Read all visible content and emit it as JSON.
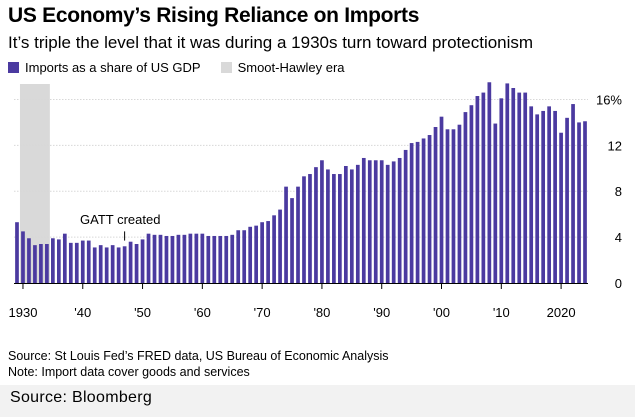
{
  "title": "US Economy’s Rising Reliance on Imports",
  "subtitle": "It’s triple the level that it was during a 1930s turn toward protectionism",
  "legend": [
    {
      "label": "Imports as a share of US GDP",
      "color": "#4b3aa0"
    },
    {
      "label": "Smoot-Hawley era",
      "color": "#d9d9d9"
    }
  ],
  "chart_data": {
    "type": "bar",
    "title": "US Economy’s Rising Reliance on Imports",
    "subtitle": "It’s triple the level that it was during a 1930s turn toward protectionism",
    "xlabel": "",
    "ylabel": "",
    "ylim": [
      0,
      17
    ],
    "xlim": [
      1929,
      2024
    ],
    "y_ticks": [
      0,
      4,
      8,
      12,
      16
    ],
    "y_tick_labels": [
      "0",
      "4",
      "8",
      "12",
      "16%"
    ],
    "x_ticks": [
      1930,
      1940,
      1950,
      1960,
      1970,
      1980,
      1990,
      2000,
      2010,
      2020
    ],
    "x_tick_labels": [
      "1930",
      "'40",
      "'50",
      "'60",
      "'70",
      "'80",
      "'90",
      "'00",
      "'10",
      "2020"
    ],
    "grid": "horizontal",
    "legend_position": "top-left",
    "shaded_region": {
      "label": "Smoot-Hawley era",
      "start": 1930,
      "end": 1934,
      "color": "#d9d9d9"
    },
    "annotations": [
      {
        "text": "GATT created",
        "x": 1947
      }
    ],
    "series": [
      {
        "name": "Imports as a share of US GDP",
        "color": "#4b3aa0",
        "x": [
          1929,
          1930,
          1931,
          1932,
          1933,
          1934,
          1935,
          1936,
          1937,
          1938,
          1939,
          1940,
          1941,
          1942,
          1943,
          1944,
          1945,
          1946,
          1947,
          1948,
          1949,
          1950,
          1951,
          1952,
          1953,
          1954,
          1955,
          1956,
          1957,
          1958,
          1959,
          1960,
          1961,
          1962,
          1963,
          1964,
          1965,
          1966,
          1967,
          1968,
          1969,
          1970,
          1971,
          1972,
          1973,
          1974,
          1975,
          1976,
          1977,
          1978,
          1979,
          1980,
          1981,
          1982,
          1983,
          1984,
          1985,
          1986,
          1987,
          1988,
          1989,
          1990,
          1991,
          1992,
          1993,
          1994,
          1995,
          1996,
          1997,
          1998,
          1999,
          2000,
          2001,
          2002,
          2003,
          2004,
          2005,
          2006,
          2007,
          2008,
          2009,
          2010,
          2011,
          2012,
          2013,
          2014,
          2015,
          2016,
          2017,
          2018,
          2019,
          2020,
          2021,
          2022,
          2023,
          2024
        ],
        "values": [
          5.3,
          4.5,
          3.9,
          3.3,
          3.4,
          3.4,
          3.9,
          3.8,
          4.3,
          3.5,
          3.5,
          3.7,
          3.7,
          3.1,
          3.3,
          3.1,
          3.3,
          3.1,
          3.2,
          3.6,
          3.4,
          3.8,
          4.3,
          4.2,
          4.2,
          4.1,
          4.1,
          4.2,
          4.2,
          4.3,
          4.3,
          4.3,
          4.1,
          4.1,
          4.1,
          4.1,
          4.2,
          4.6,
          4.6,
          4.9,
          5.0,
          5.3,
          5.4,
          5.9,
          6.4,
          8.4,
          7.4,
          8.4,
          9.3,
          9.5,
          10.1,
          10.7,
          9.9,
          9.5,
          9.5,
          10.2,
          9.9,
          10.3,
          10.9,
          10.7,
          10.7,
          10.7,
          10.3,
          10.6,
          10.9,
          11.6,
          12.2,
          12.3,
          12.6,
          12.9,
          13.6,
          14.5,
          13.4,
          13.4,
          13.8,
          14.9,
          15.5,
          16.3,
          16.6,
          17.5,
          13.9,
          16.1,
          17.4,
          17.0,
          16.6,
          16.6,
          15.4,
          14.7,
          15.0,
          15.4,
          15.0,
          13.1,
          14.4,
          15.6,
          14.0,
          14.1
        ]
      }
    ]
  },
  "annotation_label": "GATT created",
  "source_line1": "Source: St Louis Fed’s FRED data, US Bureau of Economic Analysis",
  "source_line2": "Note: Import data cover goods and services",
  "credit": "Source: Bloomberg"
}
